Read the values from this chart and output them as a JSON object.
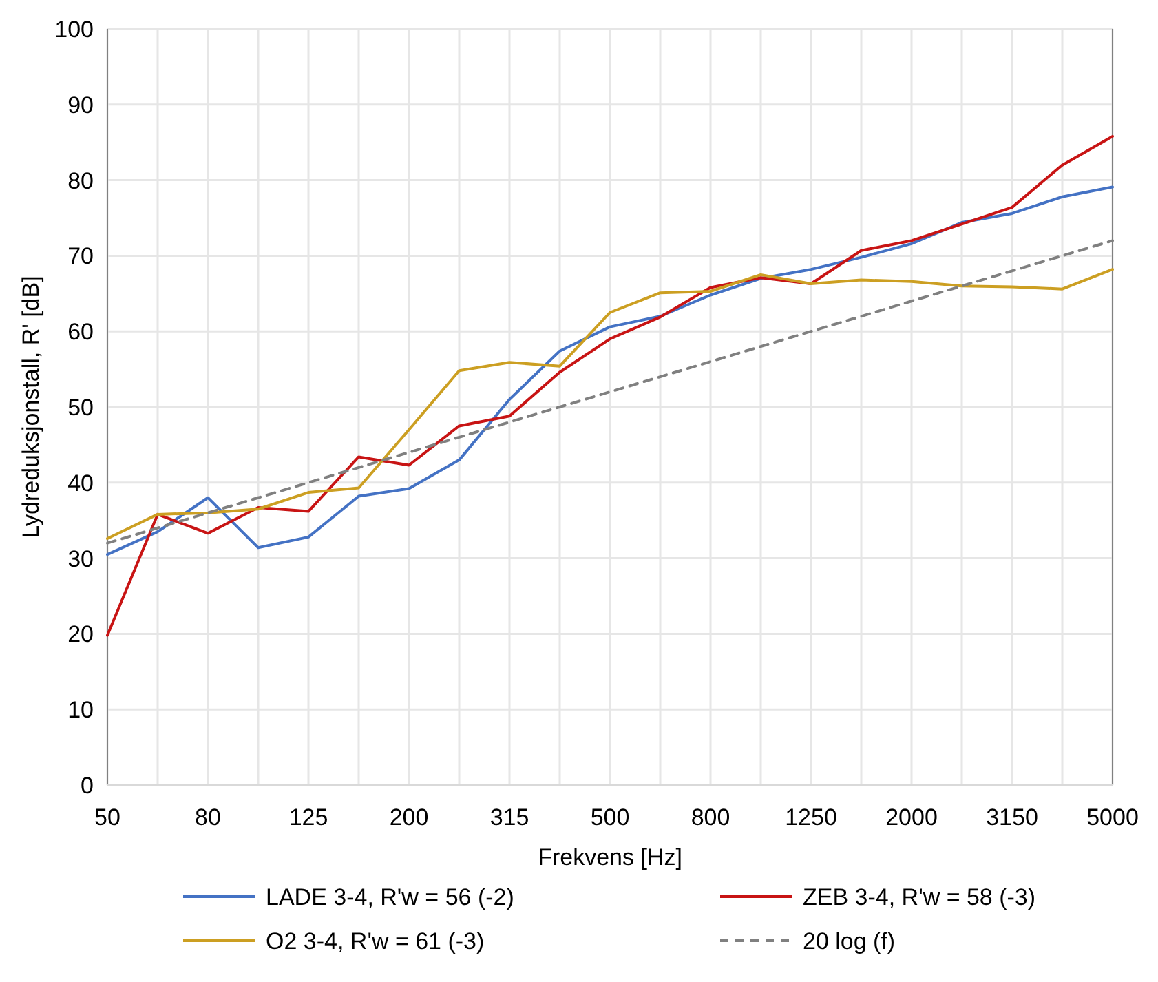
{
  "chart_data": {
    "type": "line",
    "xlabel": "Frekvens [Hz]",
    "ylabel": "Lydreduksjonstall, R' [dB]",
    "categories": [
      "50",
      null,
      "80",
      null,
      "125",
      null,
      "200",
      null,
      "315",
      null,
      "500",
      null,
      "800",
      null,
      "1250",
      null,
      "2000",
      null,
      "3150",
      null,
      "5000"
    ],
    "ylim": [
      0,
      100
    ],
    "yticks": [
      0,
      10,
      20,
      30,
      40,
      50,
      60,
      70,
      80,
      90,
      100
    ],
    "grid": true,
    "legend": "bottom",
    "marker": "none",
    "series": [
      {
        "name": "LADE 3-4, R'w = 56 (-2)",
        "color": "#4472c4",
        "values": [
          30.5,
          33.5,
          38,
          31.4,
          32.8,
          38.2,
          39.2,
          43,
          51,
          57.4,
          60.6,
          62,
          64.8,
          67,
          68.2,
          69.8,
          71.6,
          74.4,
          75.6,
          77.8,
          79.1
        ]
      },
      {
        "name": "ZEB 3-4, R'w = 58 (-3)",
        "color": "#c81414",
        "values": [
          19.8,
          35.8,
          33.3,
          36.7,
          36.2,
          43.4,
          42.3,
          47.5,
          48.8,
          54.6,
          59,
          61.9,
          65.8,
          67.1,
          66.3,
          70.7,
          72,
          74.2,
          76.4,
          82,
          85.8
        ]
      },
      {
        "name": "O2 3-4, R'w = 61 (-3)",
        "color": "#cc9f22",
        "values": [
          32.6,
          35.8,
          36,
          36.5,
          38.7,
          39.3,
          47,
          54.8,
          55.9,
          55.4,
          62.5,
          65.1,
          65.3,
          67.5,
          66.3,
          66.8,
          66.6,
          66,
          65.9,
          65.6,
          68.2
        ]
      },
      {
        "name": "20 log (f)",
        "color": "#808080",
        "line_style": "dashed",
        "values": [
          32,
          34,
          36,
          38,
          40,
          42,
          44,
          46,
          48,
          50,
          52,
          54,
          56,
          58,
          60,
          62,
          64,
          66,
          68,
          70,
          72
        ]
      }
    ]
  }
}
